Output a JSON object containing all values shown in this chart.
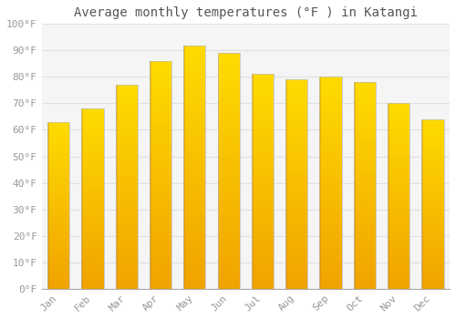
{
  "title": "Average monthly temperatures (°F ) in Katangi",
  "months": [
    "Jan",
    "Feb",
    "Mar",
    "Apr",
    "May",
    "Jun",
    "Jul",
    "Aug",
    "Sep",
    "Oct",
    "Nov",
    "Dec"
  ],
  "values": [
    63,
    68,
    77,
    86,
    92,
    89,
    81,
    79,
    80,
    78,
    70,
    64
  ],
  "bar_color_bottom": "#F0A500",
  "bar_color_mid": "#FFC526",
  "bar_color_top": "#FFD966",
  "bar_edge_color": "#AAAAAA",
  "ylim": [
    0,
    100
  ],
  "yticks": [
    0,
    10,
    20,
    30,
    40,
    50,
    60,
    70,
    80,
    90,
    100
  ],
  "ytick_labels": [
    "0°F",
    "10°F",
    "20°F",
    "30°F",
    "40°F",
    "50°F",
    "60°F",
    "70°F",
    "80°F",
    "90°F",
    "100°F"
  ],
  "background_color": "#FFFFFF",
  "plot_bg_color": "#F5F5F5",
  "grid_color": "#E0E0E0",
  "title_fontsize": 10,
  "tick_fontsize": 8,
  "font_family": "DejaVu Sans Mono",
  "tick_color": "#999999",
  "bar_width": 0.65
}
